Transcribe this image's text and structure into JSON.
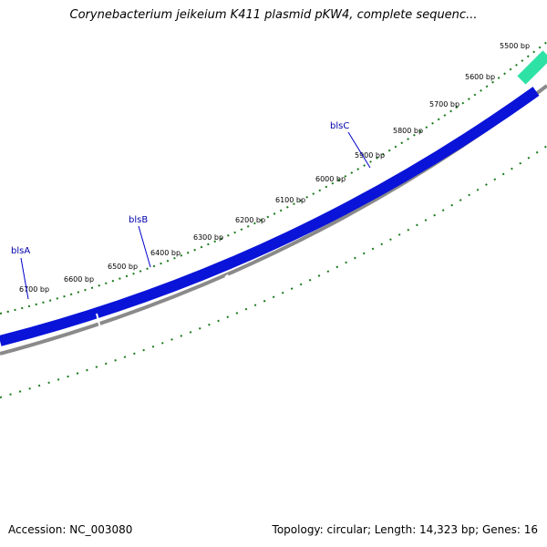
{
  "map": {
    "title": "Corynebacterium jeikeium K411 plasmid pKW4, complete sequenc...",
    "accession_text": "Accession: NC_003080",
    "topology_text": "Topology: circular; Length: 14,323 bp; Genes: 16"
  },
  "sequence": {
    "length_bp": 14323,
    "topology": "circular",
    "genes_count": 16
  },
  "ticks": [
    "5500 bp",
    "5600 bp",
    "5700 bp",
    "5800 bp",
    "5900 bp",
    "6000 bp",
    "6100 bp",
    "6200 bp",
    "6300 bp",
    "6400 bp",
    "6500 bp",
    "6600 bp",
    "6700 bp"
  ],
  "genes": [
    {
      "name": "blsA",
      "strand": "forward"
    },
    {
      "name": "blsB",
      "strand": "forward"
    },
    {
      "name": "blsC",
      "strand": "forward"
    }
  ],
  "colors": {
    "forward_gene": "#0a14d8",
    "other_gene": "#2ee2a6",
    "backbone": "#8a8a8a",
    "ticks": "#1a7a1a",
    "gene_label": "#0000aa"
  }
}
